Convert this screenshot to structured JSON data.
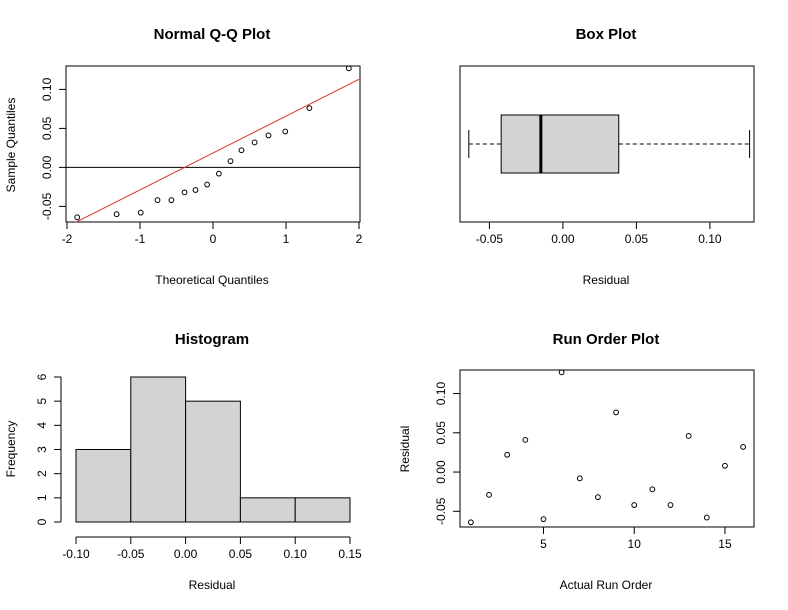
{
  "chart_data": [
    {
      "type": "scatter",
      "title": "Normal Q-Q Plot",
      "xlabel": "Theoretical Quantiles",
      "ylabel": "Sample Quantiles",
      "xlim": [
        -2,
        2
      ],
      "ylim": [
        -0.07,
        0.13
      ],
      "xticks": [
        "-2",
        "-1",
        "0",
        "1",
        "2"
      ],
      "xtick_values": [
        -2,
        -1,
        0,
        1,
        2
      ],
      "yticks": [
        "-0.05",
        "0.00",
        "0.05",
        "0.10"
      ],
      "ytick_values": [
        -0.05,
        0.0,
        0.05,
        0.1
      ],
      "points": [
        {
          "x": -1.86,
          "y": -0.064
        },
        {
          "x": -1.32,
          "y": -0.06
        },
        {
          "x": -0.99,
          "y": -0.058
        },
        {
          "x": -0.76,
          "y": -0.042
        },
        {
          "x": -0.57,
          "y": -0.042
        },
        {
          "x": -0.39,
          "y": -0.032
        },
        {
          "x": -0.24,
          "y": -0.029
        },
        {
          "x": -0.08,
          "y": -0.022
        },
        {
          "x": 0.08,
          "y": -0.008
        },
        {
          "x": 0.24,
          "y": 0.008
        },
        {
          "x": 0.39,
          "y": 0.022
        },
        {
          "x": 0.57,
          "y": 0.032
        },
        {
          "x": 0.76,
          "y": 0.041
        },
        {
          "x": 0.99,
          "y": 0.046
        },
        {
          "x": 1.32,
          "y": 0.076
        },
        {
          "x": 1.86,
          "y": 0.127
        }
      ],
      "qq_line": {
        "x0": -2,
        "y0": -0.076,
        "x1": 2,
        "y1": 0.113,
        "color": "#e0302f"
      },
      "reference_line_y": 0
    },
    {
      "type": "box",
      "title": "Box Plot",
      "xlabel": "Residual",
      "xlim": [
        -0.07,
        0.13
      ],
      "xticks": [
        "-0.05",
        "0.00",
        "0.05",
        "0.10"
      ],
      "xtick_values": [
        -0.05,
        0.0,
        0.05,
        0.1
      ],
      "whisker_low": -0.064,
      "q1": -0.042,
      "median": -0.015,
      "q3": 0.038,
      "whisker_high": 0.127,
      "fill": "#d3d3d3"
    },
    {
      "type": "bar",
      "title": "Histogram",
      "xlabel": "Residual",
      "ylabel": "Frequency",
      "bin_edges": [
        -0.1,
        -0.05,
        0.0,
        0.05,
        0.1,
        0.15
      ],
      "values": [
        3,
        6,
        5,
        1,
        1
      ],
      "xlim": [
        -0.1,
        0.15
      ],
      "ylim": [
        0,
        6
      ],
      "xticks": [
        "-0.10",
        "-0.05",
        "0.00",
        "0.05",
        "0.10",
        "0.15"
      ],
      "xtick_values": [
        -0.1,
        -0.05,
        0.0,
        0.05,
        0.1,
        0.15
      ],
      "yticks": [
        "0",
        "1",
        "2",
        "3",
        "4",
        "5",
        "6"
      ],
      "ytick_values": [
        0,
        1,
        2,
        3,
        4,
        5,
        6
      ],
      "fill": "#d3d3d3"
    },
    {
      "type": "scatter",
      "title": "Run Order Plot",
      "xlabel": "Actual Run Order",
      "ylabel": "Residual",
      "xlim": [
        0.4,
        16.6
      ],
      "ylim": [
        -0.07,
        0.13
      ],
      "xticks": [
        "5",
        "10",
        "15"
      ],
      "xtick_values": [
        5,
        10,
        15
      ],
      "yticks": [
        "-0.05",
        "0.00",
        "0.05",
        "0.10"
      ],
      "ytick_values": [
        -0.05,
        0.0,
        0.05,
        0.1
      ],
      "points": [
        {
          "x": 1,
          "y": -0.064
        },
        {
          "x": 2,
          "y": -0.029
        },
        {
          "x": 3,
          "y": 0.022
        },
        {
          "x": 4,
          "y": 0.041
        },
        {
          "x": 5,
          "y": -0.06
        },
        {
          "x": 6,
          "y": 0.127
        },
        {
          "x": 7,
          "y": -0.008
        },
        {
          "x": 8,
          "y": -0.032
        },
        {
          "x": 9,
          "y": 0.076
        },
        {
          "x": 10,
          "y": -0.042
        },
        {
          "x": 11,
          "y": -0.022
        },
        {
          "x": 12,
          "y": -0.042
        },
        {
          "x": 13,
          "y": 0.046
        },
        {
          "x": 14,
          "y": -0.058
        },
        {
          "x": 15,
          "y": 0.008
        },
        {
          "x": 16,
          "y": 0.032
        }
      ]
    }
  ]
}
